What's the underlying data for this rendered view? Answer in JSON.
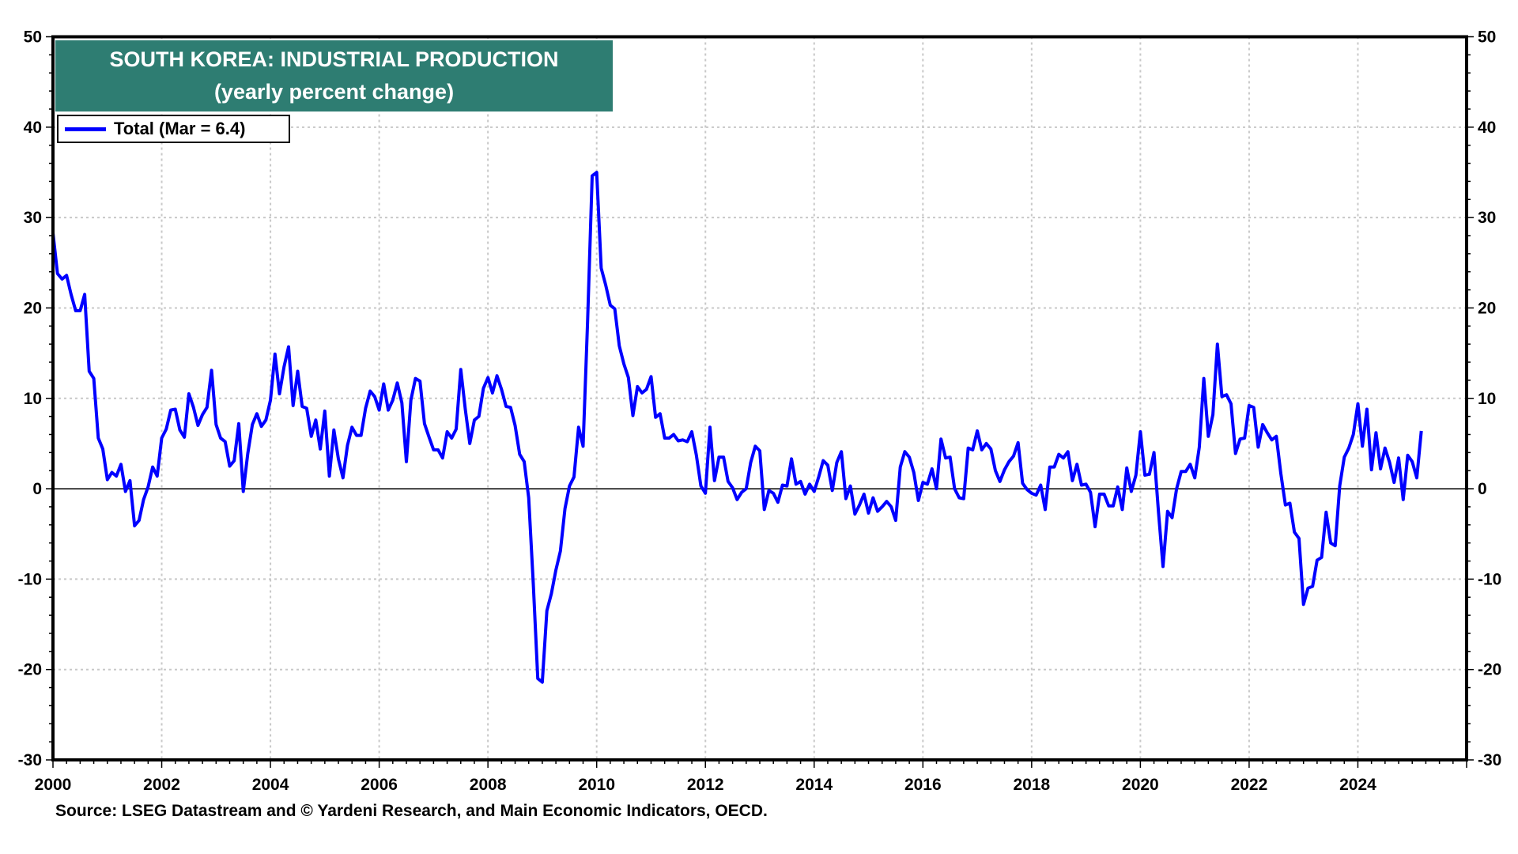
{
  "chart_data": {
    "type": "line",
    "title": "SOUTH KOREA: INDUSTRIAL PRODUCTION",
    "subtitle": "(yearly percent change)",
    "source": "Source: LSEG Datastream and © Yardeni Research, and Main Economic Indicators, OECD.",
    "xlabel": "",
    "ylabel": "",
    "xlim": [
      2000,
      2026
    ],
    "ylim": [
      -30,
      50
    ],
    "x_ticks": [
      "2000",
      "2002",
      "2004",
      "2006",
      "2008",
      "2010",
      "2012",
      "2014",
      "2016",
      "2018",
      "2020",
      "2022",
      "2024"
    ],
    "y_ticks": [
      "50",
      "40",
      "30",
      "20",
      "10",
      "0",
      "-10",
      "-20",
      "-30"
    ],
    "grid": true,
    "legend_position": "top-left",
    "series": [
      {
        "name": "Total (Mar = 6.4)",
        "color": "#0000ff",
        "start": "2000-01",
        "frequency": "monthly",
        "values": [
          28.3,
          23.8,
          23.2,
          23.6,
          21.5,
          19.7,
          19.7,
          21.5,
          13.0,
          12.2,
          5.6,
          4.4,
          1.0,
          1.8,
          1.4,
          2.7,
          -0.3,
          0.9,
          -4.1,
          -3.5,
          -1.2,
          0.2,
          2.4,
          1.4,
          5.6,
          6.6,
          8.7,
          8.8,
          6.5,
          5.7,
          10.5,
          9.0,
          7.0,
          8.2,
          9.0,
          13.1,
          7.1,
          5.6,
          5.2,
          2.5,
          3.1,
          7.2,
          -0.3,
          3.9,
          7.1,
          8.3,
          6.9,
          7.6,
          9.8,
          14.9,
          10.5,
          13.5,
          15.7,
          9.2,
          13.0,
          9.1,
          8.9,
          5.8,
          7.6,
          4.4,
          8.6,
          1.4,
          6.5,
          3.3,
          1.2,
          4.8,
          6.8,
          5.9,
          5.9,
          8.9,
          10.8,
          10.2,
          8.7,
          11.6,
          8.7,
          9.8,
          11.7,
          9.5,
          3.0,
          9.8,
          12.2,
          11.9,
          7.2,
          5.7,
          4.3,
          4.3,
          3.4,
          6.3,
          5.6,
          6.6,
          13.2,
          8.8,
          5.0,
          7.6,
          8.0,
          11.1,
          12.3,
          10.6,
          12.5,
          11.0,
          9.1,
          9.0,
          7.0,
          3.8,
          3.0,
          -1.0,
          -10.5,
          -21.0,
          -21.4,
          -13.5,
          -11.6,
          -9.0,
          -6.9,
          -2.2,
          0.3,
          1.3,
          6.8,
          4.7,
          18.5,
          34.6,
          35.0,
          24.4,
          22.5,
          20.3,
          19.9,
          15.8,
          13.8,
          12.3,
          8.1,
          11.3,
          10.6,
          11.0,
          12.4,
          7.9,
          8.3,
          5.6,
          5.6,
          6.0,
          5.3,
          5.4,
          5.2,
          6.3,
          3.7,
          0.3,
          -0.5,
          6.8,
          0.9,
          3.5,
          3.5,
          0.8,
          0.1,
          -1.2,
          -0.4,
          0.0,
          2.9,
          4.7,
          4.2,
          -2.3,
          -0.2,
          -0.5,
          -1.5,
          0.4,
          0.3,
          3.3,
          0.5,
          0.8,
          -0.6,
          0.5,
          -0.3,
          1.3,
          3.1,
          2.6,
          -0.2,
          2.9,
          4.1,
          -1.1,
          0.3,
          -2.8,
          -1.8,
          -0.6,
          -2.7,
          -1.0,
          -2.5,
          -2.0,
          -1.4,
          -2.0,
          -3.5,
          2.4,
          4.1,
          3.5,
          1.8,
          -1.3,
          0.7,
          0.5,
          2.2,
          0.0,
          5.5,
          3.4,
          3.5,
          0.0,
          -1.0,
          -1.1,
          4.5,
          4.3,
          6.4,
          4.3,
          5.0,
          4.4,
          2.0,
          0.8,
          2.1,
          3.0,
          3.6,
          5.1,
          0.6,
          -0.1,
          -0.5,
          -0.7,
          0.4,
          -2.3,
          2.4,
          2.4,
          3.8,
          3.4,
          4.1,
          0.9,
          2.7,
          0.4,
          0.5,
          -0.4,
          -4.2,
          -0.6,
          -0.6,
          -1.9,
          -1.9,
          0.2,
          -2.3,
          2.3,
          -0.3,
          1.5,
          6.3,
          1.5,
          1.6,
          4.0,
          -2.6,
          -8.6,
          -2.5,
          -3.2,
          0.0,
          1.9,
          1.9,
          2.7,
          1.2,
          4.6,
          12.2,
          5.8,
          8.2,
          16.0,
          10.2,
          10.4,
          9.4,
          3.9,
          5.5,
          5.6,
          9.2,
          9.0,
          4.6,
          7.1,
          6.2,
          5.4,
          5.8,
          1.7,
          -1.8,
          -1.6,
          -4.8,
          -5.5,
          -12.8,
          -11.0,
          -10.8,
          -7.9,
          -7.6,
          -2.6,
          -6.0,
          -6.3,
          0.3,
          3.5,
          4.5,
          6.0,
          9.4,
          4.7,
          8.8,
          2.1,
          6.2,
          2.2,
          4.5,
          2.9,
          0.7,
          3.4,
          -1.2,
          3.7,
          3.0,
          1.2,
          6.4
        ]
      }
    ]
  }
}
